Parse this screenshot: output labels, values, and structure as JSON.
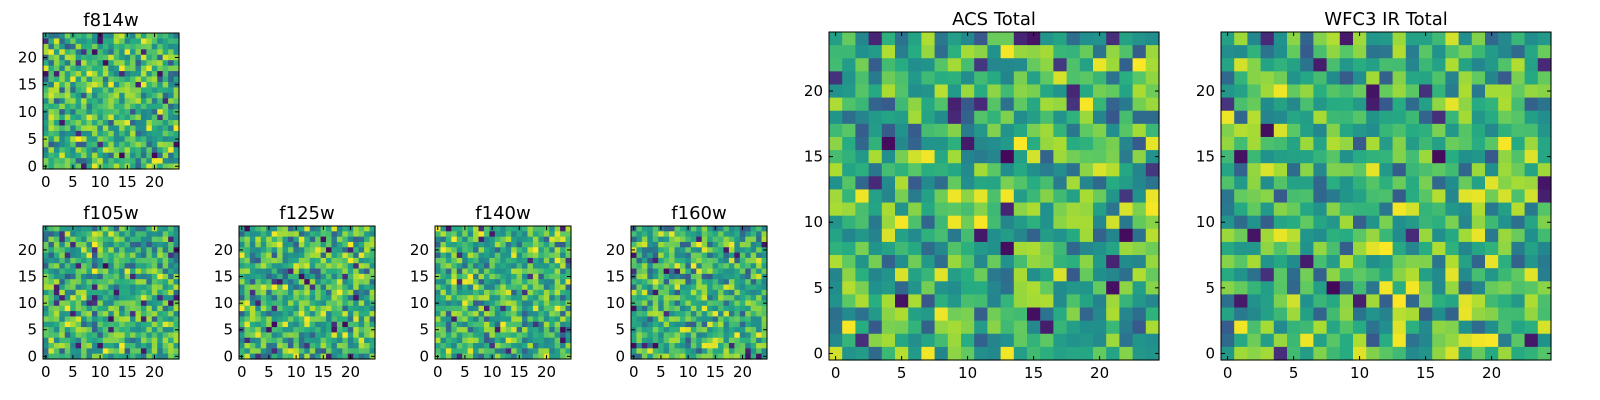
{
  "colors": {
    "colormap": "viridis"
  },
  "chart_data": [
    {
      "type": "heatmap",
      "title": "f814w",
      "grid": "25x25",
      "xlim": [
        0,
        24
      ],
      "ylim": [
        0,
        24
      ],
      "xticks": [
        "0",
        "5",
        "10",
        "15",
        "20"
      ],
      "yticks": [
        "0",
        "5",
        "10",
        "15",
        "20"
      ],
      "value_range": [
        0,
        1
      ],
      "seed": 11
    },
    {
      "type": "heatmap",
      "title": "f105w",
      "grid": "25x25",
      "xlim": [
        0,
        24
      ],
      "ylim": [
        0,
        24
      ],
      "xticks": [
        "0",
        "5",
        "10",
        "15",
        "20"
      ],
      "yticks": [
        "0",
        "5",
        "10",
        "15",
        "20"
      ],
      "value_range": [
        0,
        1
      ],
      "seed": 23
    },
    {
      "type": "heatmap",
      "title": "f125w",
      "grid": "25x25",
      "xlim": [
        0,
        24
      ],
      "ylim": [
        0,
        24
      ],
      "xticks": [
        "0",
        "5",
        "10",
        "15",
        "20"
      ],
      "yticks": [
        "0",
        "5",
        "10",
        "15",
        "20"
      ],
      "value_range": [
        0,
        1
      ],
      "seed": 37
    },
    {
      "type": "heatmap",
      "title": "f140w",
      "grid": "25x25",
      "xlim": [
        0,
        24
      ],
      "ylim": [
        0,
        24
      ],
      "xticks": [
        "0",
        "5",
        "10",
        "15",
        "20"
      ],
      "yticks": [
        "0",
        "5",
        "10",
        "15",
        "20"
      ],
      "value_range": [
        0,
        1
      ],
      "seed": 41
    },
    {
      "type": "heatmap",
      "title": "f160w",
      "grid": "25x25",
      "xlim": [
        0,
        24
      ],
      "ylim": [
        0,
        24
      ],
      "xticks": [
        "0",
        "5",
        "10",
        "15",
        "20"
      ],
      "yticks": [
        "0",
        "5",
        "10",
        "15",
        "20"
      ],
      "value_range": [
        0,
        1
      ],
      "seed": 53
    },
    {
      "type": "heatmap",
      "title": "ACS Total",
      "grid": "25x25",
      "xlim": [
        0,
        24
      ],
      "ylim": [
        0,
        24
      ],
      "xticks": [
        "0",
        "5",
        "10",
        "15",
        "20"
      ],
      "yticks": [
        "0",
        "5",
        "10",
        "15",
        "20"
      ],
      "value_range": [
        0,
        1
      ],
      "seed": 67
    },
    {
      "type": "heatmap",
      "title": "WFC3 IR Total",
      "grid": "25x25",
      "xlim": [
        0,
        24
      ],
      "ylim": [
        0,
        24
      ],
      "xticks": [
        "0",
        "5",
        "10",
        "15",
        "20"
      ],
      "yticks": [
        "0",
        "5",
        "10",
        "15",
        "20"
      ],
      "value_range": [
        0,
        1
      ],
      "seed": 79
    }
  ]
}
